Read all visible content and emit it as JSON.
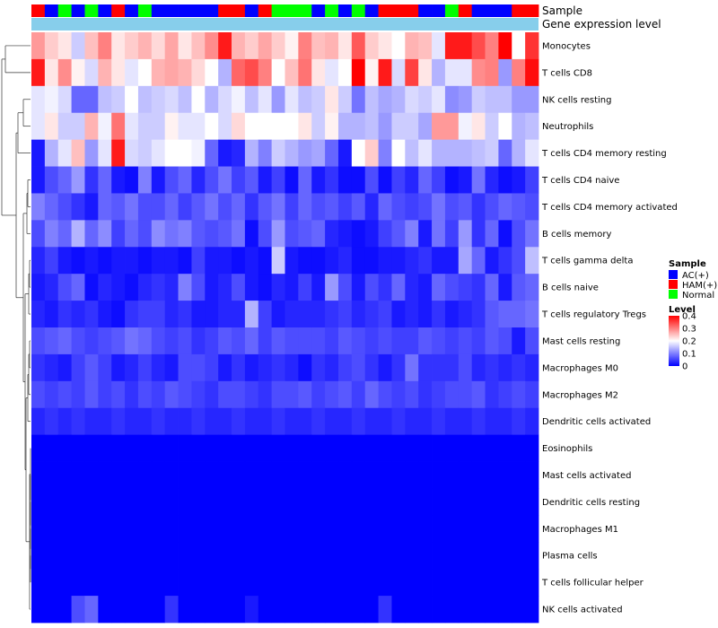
{
  "chart_data": {
    "type": "heatmap",
    "annotations": [
      {
        "name": "Sample",
        "label": "Sample"
      },
      {
        "name": "Gene expression level",
        "label": "Gene expression level"
      }
    ],
    "sample_groups": [
      "AC(+)",
      "HAM(+)",
      "Normal"
    ],
    "sample_colors": {
      "AC(+)": "#0000ff",
      "HAM(+)": "#ff0000",
      "Normal": "#00ff00"
    },
    "sample_assignment": [
      "HAM(+)",
      "AC(+)",
      "Normal",
      "AC(+)",
      "Normal",
      "AC(+)",
      "HAM(+)",
      "AC(+)",
      "Normal",
      "AC(+)",
      "AC(+)",
      "AC(+)",
      "AC(+)",
      "AC(+)",
      "HAM(+)",
      "HAM(+)",
      "AC(+)",
      "HAM(+)",
      "Normal",
      "Normal",
      "Normal",
      "AC(+)",
      "Normal",
      "AC(+)",
      "Normal",
      "AC(+)",
      "HAM(+)",
      "HAM(+)",
      "HAM(+)",
      "AC(+)",
      "AC(+)",
      "Normal",
      "HAM(+)",
      "AC(+)",
      "AC(+)",
      "AC(+)",
      "HAM(+)",
      "HAM(+)"
    ],
    "gene_expression_color": "#87ceeb",
    "rows": [
      "Monocytes",
      "T cells CD8",
      "NK cells resting",
      "Neutrophils",
      "T cells CD4 memory resting",
      "T cells CD4 naive",
      "T cells CD4 memory activated",
      "B cells memory",
      "T cells gamma delta",
      "B cells naive",
      "T cells regulatory  Tregs",
      "Mast cells resting",
      "Macrophages M0",
      "Macrophages M2",
      "Dendritic cells activated",
      "Eosinophils",
      "Mast cells activated",
      "Dendritic cells resting",
      "Macrophages M1",
      "Plasma cells",
      "T cells follicular helper",
      "NK cells activated"
    ],
    "values": [
      [
        0.28,
        0.24,
        0.22,
        0.16,
        0.25,
        0.3,
        0.22,
        0.24,
        0.26,
        0.23,
        0.27,
        0.22,
        0.25,
        0.29,
        0.38,
        0.26,
        0.24,
        0.27,
        0.24,
        0.21,
        0.3,
        0.25,
        0.26,
        0.22,
        0.33,
        0.24,
        0.22,
        0.2,
        0.26,
        0.25,
        0.18,
        0.38,
        0.38,
        0.34,
        0.3,
        0.4,
        0.2,
        0.36
      ],
      [
        0.38,
        0.22,
        0.29,
        0.21,
        0.17,
        0.26,
        0.22,
        0.18,
        0.2,
        0.26,
        0.27,
        0.26,
        0.23,
        0.2,
        0.14,
        0.32,
        0.34,
        0.3,
        0.2,
        0.25,
        0.31,
        0.22,
        0.18,
        0.2,
        0.4,
        0.21,
        0.38,
        0.17,
        0.35,
        0.22,
        0.14,
        0.18,
        0.18,
        0.29,
        0.3,
        0.12,
        0.3,
        0.39
      ],
      [
        0.18,
        0.19,
        0.17,
        0.08,
        0.08,
        0.15,
        0.16,
        0.2,
        0.15,
        0.16,
        0.17,
        0.15,
        0.2,
        0.14,
        0.17,
        0.19,
        0.15,
        0.18,
        0.12,
        0.18,
        0.15,
        0.16,
        0.22,
        0.16,
        0.09,
        0.15,
        0.13,
        0.14,
        0.17,
        0.16,
        0.18,
        0.11,
        0.12,
        0.16,
        0.15,
        0.15,
        0.12,
        0.12
      ],
      [
        0.18,
        0.22,
        0.16,
        0.16,
        0.26,
        0.19,
        0.31,
        0.18,
        0.16,
        0.16,
        0.21,
        0.18,
        0.18,
        0.2,
        0.17,
        0.23,
        0.2,
        0.2,
        0.2,
        0.2,
        0.22,
        0.16,
        0.21,
        0.14,
        0.14,
        0.15,
        0.12,
        0.16,
        0.16,
        0.13,
        0.28,
        0.28,
        0.19,
        0.22,
        0.16,
        0.2,
        0.14,
        0.15
      ],
      [
        0.02,
        0.14,
        0.18,
        0.25,
        0.12,
        0.18,
        0.38,
        0.17,
        0.16,
        0.18,
        0.2,
        0.2,
        0.19,
        0.08,
        0.02,
        0.03,
        0.14,
        0.1,
        0.16,
        0.14,
        0.12,
        0.13,
        0.08,
        0.02,
        0.2,
        0.24,
        0.1,
        0.2,
        0.15,
        0.18,
        0.14,
        0.14,
        0.14,
        0.15,
        0.16,
        0.08,
        0.14,
        0.18
      ],
      [
        0.02,
        0.06,
        0.08,
        0.12,
        0.04,
        0.08,
        0.02,
        0.01,
        0.1,
        0.02,
        0.06,
        0.08,
        0.03,
        0.06,
        0.09,
        0.05,
        0.07,
        0.02,
        0.05,
        0.01,
        0.08,
        0.02,
        0.04,
        0.01,
        0.01,
        0.06,
        0.01,
        0.05,
        0.03,
        0.08,
        0.05,
        0.01,
        0.02,
        0.09,
        0.03,
        0.01,
        0.02,
        0.05
      ],
      [
        0.1,
        0.08,
        0.06,
        0.04,
        0.02,
        0.08,
        0.07,
        0.09,
        0.06,
        0.06,
        0.08,
        0.05,
        0.07,
        0.09,
        0.06,
        0.08,
        0.04,
        0.07,
        0.09,
        0.05,
        0.08,
        0.06,
        0.07,
        0.05,
        0.07,
        0.03,
        0.08,
        0.06,
        0.05,
        0.06,
        0.09,
        0.06,
        0.07,
        0.04,
        0.06,
        0.08,
        0.07,
        0.06
      ],
      [
        0.06,
        0.1,
        0.08,
        0.14,
        0.08,
        0.11,
        0.05,
        0.08,
        0.06,
        0.11,
        0.09,
        0.1,
        0.07,
        0.06,
        0.07,
        0.09,
        0.01,
        0.06,
        0.12,
        0.06,
        0.07,
        0.08,
        0.03,
        0.02,
        0.01,
        0.02,
        0.05,
        0.07,
        0.1,
        0.02,
        0.09,
        0.05,
        0.12,
        0.04,
        0.08,
        0.01,
        0.06,
        0.09
      ],
      [
        0.03,
        0.05,
        0.02,
        0.01,
        0.02,
        0.01,
        0.02,
        0.02,
        0.01,
        0.02,
        0.02,
        0.01,
        0.05,
        0.02,
        0.02,
        0.01,
        0.02,
        0.01,
        0.16,
        0.02,
        0.01,
        0.01,
        0.02,
        0.03,
        0.01,
        0.01,
        0.02,
        0.02,
        0.03,
        0.04,
        0.02,
        0.02,
        0.13,
        0.08,
        0.02,
        0.04,
        0.06,
        0.15
      ],
      [
        0.02,
        0.03,
        0.06,
        0.08,
        0.01,
        0.03,
        0.02,
        0.01,
        0.03,
        0.04,
        0.03,
        0.1,
        0.06,
        0.02,
        0.03,
        0.06,
        0.02,
        0.01,
        0.03,
        0.02,
        0.05,
        0.02,
        0.12,
        0.06,
        0.02,
        0.06,
        0.04,
        0.08,
        0.03,
        0.02,
        0.08,
        0.06,
        0.05,
        0.04,
        0.08,
        0.02,
        0.07,
        0.08
      ],
      [
        0.03,
        0.02,
        0.04,
        0.03,
        0.04,
        0.02,
        0.01,
        0.04,
        0.05,
        0.05,
        0.03,
        0.04,
        0.02,
        0.02,
        0.03,
        0.03,
        0.14,
        0.05,
        0.02,
        0.03,
        0.03,
        0.03,
        0.04,
        0.05,
        0.03,
        0.04,
        0.05,
        0.02,
        0.03,
        0.02,
        0.04,
        0.02,
        0.03,
        0.04,
        0.07,
        0.08,
        0.08,
        0.09
      ],
      [
        0.06,
        0.07,
        0.08,
        0.06,
        0.05,
        0.06,
        0.07,
        0.09,
        0.08,
        0.06,
        0.05,
        0.06,
        0.04,
        0.05,
        0.07,
        0.06,
        0.08,
        0.05,
        0.07,
        0.06,
        0.06,
        0.06,
        0.05,
        0.07,
        0.06,
        0.05,
        0.06,
        0.05,
        0.05,
        0.07,
        0.06,
        0.05,
        0.06,
        0.05,
        0.07,
        0.06,
        0.02,
        0.06
      ],
      [
        0.04,
        0.03,
        0.02,
        0.05,
        0.07,
        0.05,
        0.02,
        0.03,
        0.05,
        0.03,
        0.02,
        0.06,
        0.06,
        0.05,
        0.02,
        0.04,
        0.02,
        0.03,
        0.04,
        0.03,
        0.01,
        0.04,
        0.03,
        0.05,
        0.06,
        0.04,
        0.02,
        0.04,
        0.09,
        0.04,
        0.04,
        0.04,
        0.06,
        0.03,
        0.04,
        0.03,
        0.04,
        0.03
      ],
      [
        0.06,
        0.05,
        0.06,
        0.05,
        0.07,
        0.05,
        0.06,
        0.04,
        0.06,
        0.05,
        0.07,
        0.06,
        0.05,
        0.04,
        0.06,
        0.06,
        0.05,
        0.04,
        0.06,
        0.06,
        0.07,
        0.05,
        0.06,
        0.07,
        0.05,
        0.08,
        0.06,
        0.05,
        0.06,
        0.04,
        0.05,
        0.06,
        0.06,
        0.07,
        0.04,
        0.05,
        0.06,
        0.05
      ],
      [
        0.03,
        0.04,
        0.03,
        0.04,
        0.03,
        0.03,
        0.04,
        0.03,
        0.03,
        0.04,
        0.03,
        0.03,
        0.04,
        0.03,
        0.03,
        0.04,
        0.03,
        0.03,
        0.04,
        0.03,
        0.03,
        0.04,
        0.03,
        0.03,
        0.04,
        0.03,
        0.03,
        0.04,
        0.03,
        0.03,
        0.04,
        0.03,
        0.03,
        0.04,
        0.03,
        0.03,
        0.04,
        0.03
      ],
      [
        0.0,
        0.0,
        0.0,
        0.0,
        0.0,
        0.0,
        0.0,
        0.0,
        0.0,
        0.0,
        0.0,
        0.0,
        0.0,
        0.0,
        0.0,
        0.0,
        0.0,
        0.0,
        0.0,
        0.0,
        0.0,
        0.0,
        0.0,
        0.0,
        0.0,
        0.0,
        0.0,
        0.0,
        0.0,
        0.0,
        0.0,
        0.0,
        0.0,
        0.0,
        0.0,
        0.0,
        0.0,
        0.0
      ],
      [
        0.0,
        0.0,
        0.0,
        0.0,
        0.0,
        0.0,
        0.0,
        0.0,
        0.0,
        0.0,
        0.0,
        0.0,
        0.0,
        0.0,
        0.0,
        0.0,
        0.0,
        0.0,
        0.0,
        0.0,
        0.0,
        0.0,
        0.0,
        0.0,
        0.0,
        0.0,
        0.0,
        0.0,
        0.0,
        0.0,
        0.0,
        0.0,
        0.0,
        0.0,
        0.0,
        0.0,
        0.0,
        0.0
      ],
      [
        0.0,
        0.0,
        0.0,
        0.0,
        0.0,
        0.0,
        0.0,
        0.0,
        0.0,
        0.0,
        0.0,
        0.0,
        0.0,
        0.0,
        0.0,
        0.0,
        0.0,
        0.0,
        0.0,
        0.0,
        0.0,
        0.0,
        0.0,
        0.0,
        0.0,
        0.0,
        0.0,
        0.0,
        0.0,
        0.0,
        0.0,
        0.0,
        0.0,
        0.0,
        0.0,
        0.0,
        0.0,
        0.0
      ],
      [
        0.0,
        0.0,
        0.0,
        0.0,
        0.0,
        0.0,
        0.0,
        0.0,
        0.0,
        0.0,
        0.0,
        0.0,
        0.0,
        0.0,
        0.0,
        0.0,
        0.0,
        0.0,
        0.0,
        0.0,
        0.0,
        0.0,
        0.0,
        0.0,
        0.0,
        0.0,
        0.0,
        0.0,
        0.0,
        0.0,
        0.0,
        0.0,
        0.0,
        0.0,
        0.0,
        0.0,
        0.0,
        0.0
      ],
      [
        0.0,
        0.0,
        0.0,
        0.0,
        0.0,
        0.0,
        0.0,
        0.0,
        0.0,
        0.0,
        0.0,
        0.0,
        0.0,
        0.0,
        0.0,
        0.0,
        0.0,
        0.0,
        0.0,
        0.0,
        0.0,
        0.0,
        0.0,
        0.0,
        0.0,
        0.0,
        0.0,
        0.0,
        0.0,
        0.0,
        0.0,
        0.0,
        0.0,
        0.0,
        0.0,
        0.0,
        0.0,
        0.0
      ],
      [
        0.0,
        0.0,
        0.0,
        0.0,
        0.0,
        0.0,
        0.0,
        0.0,
        0.0,
        0.0,
        0.0,
        0.0,
        0.0,
        0.0,
        0.0,
        0.0,
        0.0,
        0.0,
        0.0,
        0.0,
        0.0,
        0.0,
        0.0,
        0.0,
        0.0,
        0.0,
        0.0,
        0.0,
        0.0,
        0.0,
        0.0,
        0.0,
        0.0,
        0.0,
        0.0,
        0.0,
        0.0,
        0.0
      ],
      [
        0.0,
        0.0,
        0.0,
        0.06,
        0.08,
        0.0,
        0.0,
        0.0,
        0.0,
        0.0,
        0.04,
        0.0,
        0.0,
        0.0,
        0.0,
        0.0,
        0.02,
        0.0,
        0.0,
        0.0,
        0.0,
        0.0,
        0.0,
        0.0,
        0.0,
        0.0,
        0.04,
        0.0,
        0.0,
        0.0,
        0.0,
        0.0,
        0.0,
        0.0,
        0.0,
        0.0,
        0.0,
        0.0
      ]
    ],
    "color_scale": {
      "low": "#0000ff",
      "mid": "#ffffff",
      "high": "#ff0000",
      "min": 0,
      "mid_value": 0.2,
      "max": 0.4
    },
    "legend": {
      "sample_title": "Sample",
      "sample_entries": [
        "AC(+)",
        "HAM(+)",
        "Normal"
      ],
      "level_title": "Level",
      "level_ticks": [
        "0.4",
        "0.3",
        "0.2",
        "0.1",
        "0"
      ],
      "placement": "right"
    }
  }
}
